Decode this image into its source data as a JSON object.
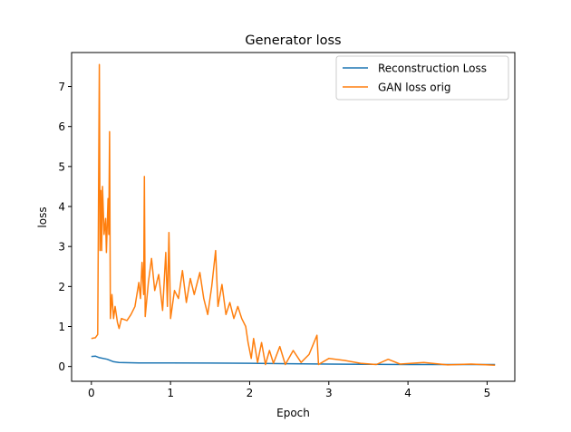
{
  "chart_data": {
    "type": "line",
    "title": "Generator loss",
    "xlabel": "Epoch",
    "ylabel": "loss",
    "xlim": [
      -0.25,
      5.35
    ],
    "ylim": [
      -0.37,
      7.85
    ],
    "xticks": [
      0,
      1,
      2,
      3,
      4,
      5
    ],
    "yticks": [
      0,
      1,
      2,
      3,
      4,
      5,
      6,
      7
    ],
    "grid": false,
    "legend_position": "top-right",
    "series": [
      {
        "name": "Reconstruction Loss",
        "color": "#1f77b4",
        "x": [
          0,
          0.05,
          0.1,
          0.2,
          0.28,
          0.35,
          0.6,
          1.0,
          1.5,
          2.0,
          2.5,
          3.0,
          3.5,
          4.0,
          4.5,
          5.1
        ],
        "y": [
          0.25,
          0.26,
          0.22,
          0.18,
          0.12,
          0.1,
          0.09,
          0.09,
          0.085,
          0.08,
          0.07,
          0.06,
          0.055,
          0.05,
          0.05,
          0.05
        ]
      },
      {
        "name": "GAN loss orig",
        "color": "#ff7f0e",
        "x": [
          0,
          0.05,
          0.08,
          0.1,
          0.11,
          0.12,
          0.13,
          0.14,
          0.16,
          0.18,
          0.19,
          0.21,
          0.22,
          0.23,
          0.24,
          0.26,
          0.28,
          0.3,
          0.33,
          0.35,
          0.38,
          0.45,
          0.5,
          0.55,
          0.6,
          0.62,
          0.64,
          0.66,
          0.67,
          0.68,
          0.72,
          0.76,
          0.8,
          0.85,
          0.9,
          0.94,
          0.96,
          0.98,
          1.0,
          1.05,
          1.1,
          1.15,
          1.2,
          1.25,
          1.3,
          1.37,
          1.42,
          1.47,
          1.52,
          1.57,
          1.6,
          1.65,
          1.7,
          1.75,
          1.8,
          1.85,
          1.9,
          1.95,
          1.98,
          2.02,
          2.05,
          2.1,
          2.15,
          2.2,
          2.25,
          2.3,
          2.38,
          2.45,
          2.55,
          2.65,
          2.75,
          2.85,
          2.87,
          3.0,
          3.2,
          3.4,
          3.6,
          3.75,
          3.9,
          4.2,
          4.5,
          4.8,
          5.1
        ],
        "y": [
          0.7,
          0.72,
          0.8,
          7.55,
          2.9,
          4.4,
          2.9,
          4.5,
          3.3,
          3.7,
          2.85,
          4.2,
          3.3,
          5.87,
          1.2,
          1.8,
          1.2,
          1.5,
          1.1,
          0.95,
          1.2,
          1.15,
          1.3,
          1.5,
          2.1,
          1.7,
          2.6,
          1.8,
          4.75,
          1.25,
          2.1,
          2.7,
          1.9,
          2.3,
          1.4,
          2.85,
          1.5,
          3.35,
          1.2,
          1.9,
          1.7,
          2.4,
          1.6,
          2.2,
          1.8,
          2.35,
          1.7,
          1.3,
          2.0,
          2.9,
          1.5,
          2.05,
          1.3,
          1.6,
          1.2,
          1.5,
          1.2,
          1.0,
          0.6,
          0.2,
          0.7,
          0.1,
          0.6,
          0.05,
          0.4,
          0.08,
          0.5,
          0.05,
          0.4,
          0.1,
          0.3,
          0.78,
          0.05,
          0.2,
          0.15,
          0.08,
          0.05,
          0.18,
          0.06,
          0.1,
          0.04,
          0.06,
          0.03
        ]
      }
    ]
  }
}
